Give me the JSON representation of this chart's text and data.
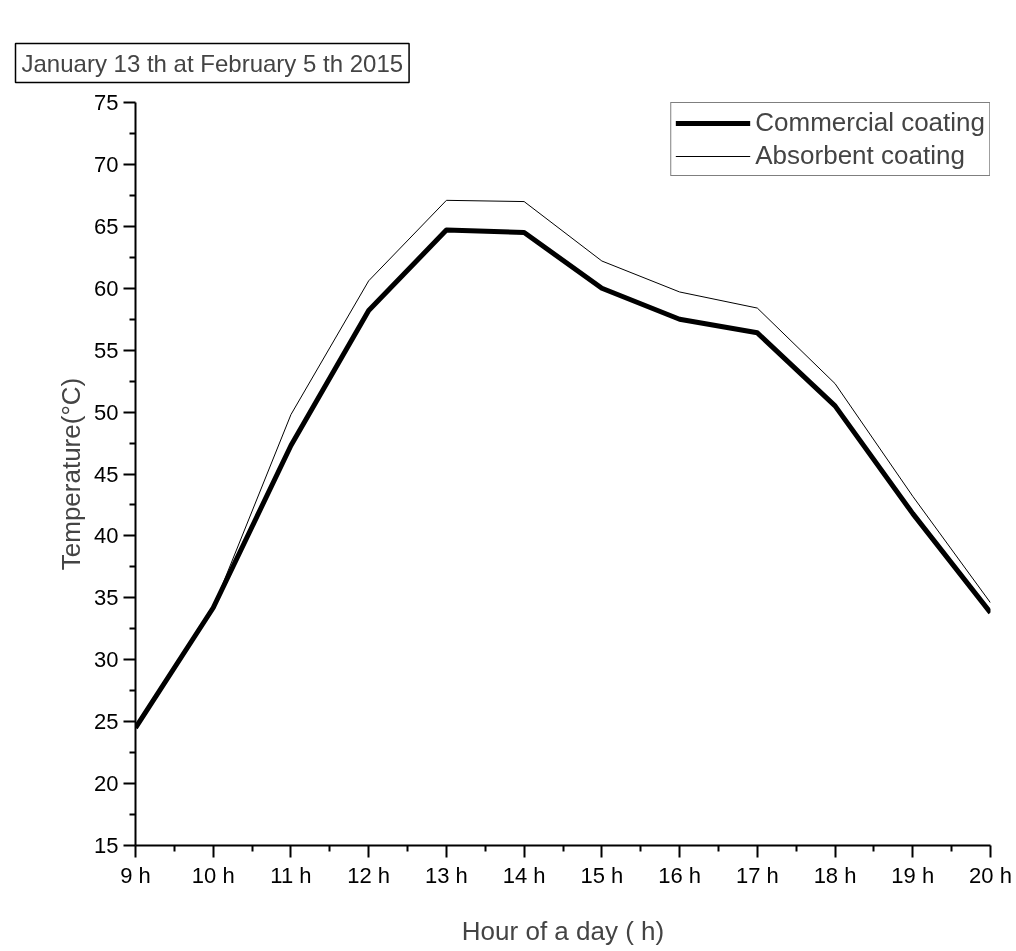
{
  "chart_data": {
    "type": "line",
    "title": "January 13 th at February 5 th 2015",
    "xlabel": "Hour of a day ( h)",
    "ylabel": "Temperature(°C)",
    "x": [
      9,
      10,
      11,
      12,
      13,
      14,
      15,
      16,
      17,
      18,
      19,
      20
    ],
    "series": [
      {
        "name": "Commercial coating",
        "color": "#000000",
        "values": [
          24.5,
          34.2,
          47.3,
          58.2,
          64.7,
          64.5,
          60.0,
          57.5,
          56.4,
          50.5,
          41.8,
          33.8
        ]
      },
      {
        "name": "Absorbent coating",
        "color": "#000000",
        "values": [
          24.5,
          34.2,
          49.8,
          60.6,
          67.1,
          67.0,
          62.2,
          59.7,
          58.4,
          52.3,
          43.2,
          34.6
        ]
      }
    ],
    "xlim": [
      9,
      20
    ],
    "xticks": [
      {
        "value": 9,
        "label": "9 h"
      },
      {
        "value": 10,
        "label": "10 h"
      },
      {
        "value": 11,
        "label": "11 h"
      },
      {
        "value": 12,
        "label": "12 h"
      },
      {
        "value": 13,
        "label": "13 h"
      },
      {
        "value": 14,
        "label": "14 h"
      },
      {
        "value": 15,
        "label": "15 h"
      },
      {
        "value": 16,
        "label": "16 h"
      },
      {
        "value": 17,
        "label": "17 h"
      },
      {
        "value": 18,
        "label": "18 h"
      },
      {
        "value": 19,
        "label": "19 h"
      },
      {
        "value": 20,
        "label": "20 h"
      }
    ],
    "ylim": [
      15,
      75
    ],
    "yticks": [
      15,
      20,
      25,
      30,
      35,
      40,
      45,
      50,
      55,
      60,
      65,
      70,
      75
    ],
    "grid": false,
    "legend": "top right",
    "marker": "none",
    "line_style": "solid"
  }
}
